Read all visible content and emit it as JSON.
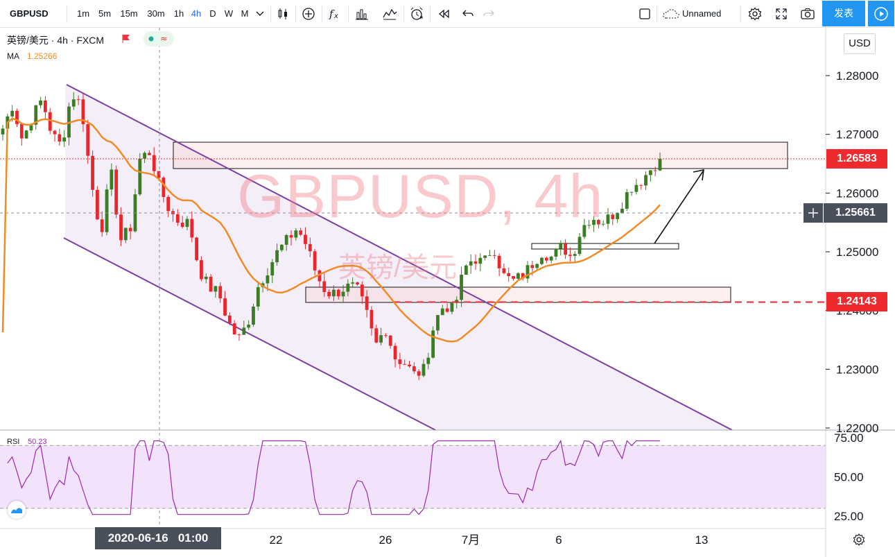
{
  "toolbar": {
    "symbol": "GBPUSD",
    "timeframes": [
      "1m",
      "5m",
      "15m",
      "30m",
      "1h",
      "4h",
      "D",
      "W",
      "M"
    ],
    "active_timeframe": "4h",
    "layout_name": "Unnamed",
    "publish_label": "发表",
    "icons": [
      "chevron-down-icon",
      "candles-icon",
      "plus-circle-icon",
      "fx-icon",
      "bars-compare-icon",
      "indicator-icon",
      "alarm-icon",
      "replay-icon",
      "undo-icon",
      "redo-icon",
      "square-icon",
      "cloud-icon",
      "gear-icon",
      "fullscreen-icon",
      "camera-icon",
      "play-icon"
    ]
  },
  "legend": {
    "title": "英镑/美元 · 4h · FXCM",
    "ma_label": "MA",
    "ma_value": "1.25266",
    "rsi_label": "RSI",
    "rsi_value": "50.23"
  },
  "watermark": {
    "line1": "GBPUSD, 4h",
    "line2": "英镑/美元"
  },
  "currency_button": "USD",
  "price_labels": {
    "last": "1.26583",
    "crosshair": "1.25661",
    "support": "1.24143"
  },
  "crosshair_time_label": "2020-06-16   01:00",
  "colors": {
    "up": "#26a69a",
    "candle_up": "#3a7d24",
    "candle_down": "#e8262b",
    "ma": "#f08a24",
    "channel": "#7b3fa3",
    "rsi": "#9c27b0",
    "rsi_band": "#f3e2fb",
    "accent": "#2196f3"
  },
  "chart_data": [
    {
      "type": "candlestick",
      "symbol": "GBPUSD",
      "interval": "4h",
      "source": "FXCM",
      "y_ticks": [
        1.22,
        1.23,
        1.24,
        1.25,
        1.26,
        1.27,
        1.28
      ],
      "ylim": [
        1.22,
        1.2855
      ],
      "x_ticks": [
        "22",
        "26",
        "7月",
        "6",
        "13"
      ],
      "close_path": [
        1.271,
        1.275,
        1.269,
        1.273,
        1.276,
        1.27,
        1.268,
        1.277,
        1.275,
        1.262,
        1.253,
        1.264,
        1.252,
        1.254,
        1.266,
        1.267,
        1.261,
        1.257,
        1.255,
        1.255,
        1.247,
        1.244,
        1.243,
        1.238,
        1.235,
        1.238,
        1.244,
        1.247,
        1.25,
        1.252,
        1.254,
        1.251,
        1.246,
        1.243,
        1.243,
        1.244,
        1.244,
        1.24,
        1.234,
        1.237,
        1.232,
        1.231,
        1.229,
        1.23,
        1.238,
        1.241,
        1.24,
        1.247,
        1.249,
        1.248,
        1.251,
        1.246,
        1.245,
        1.246,
        1.248,
        1.25,
        1.249,
        1.251,
        1.249,
        1.254,
        1.256,
        1.255,
        1.256,
        1.258,
        1.261,
        1.262,
        1.264,
        1.2658
      ],
      "moving_average": {
        "label": "MA",
        "last": 1.25266
      },
      "last_price": 1.26583,
      "support_level": 1.24143,
      "crosshair_price": 1.25661
    },
    {
      "type": "line",
      "name": "RSI",
      "last": 50.23,
      "y_ticks": [
        25.0,
        50.0,
        75.0
      ],
      "band": [
        30,
        70
      ]
    }
  ]
}
